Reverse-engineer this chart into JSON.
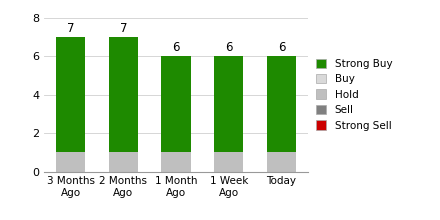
{
  "categories": [
    "3 Months\nAgo",
    "2 Months\nAgo",
    "1 Month\nAgo",
    "1 Week\nAgo",
    "Today"
  ],
  "strong_buy": [
    6,
    6,
    5,
    5,
    5
  ],
  "buy": [
    0,
    0,
    0,
    0,
    0
  ],
  "hold": [
    1,
    1,
    1,
    1,
    1
  ],
  "sell": [
    0,
    0,
    0,
    0,
    0
  ],
  "strong_sell": [
    0,
    0,
    0,
    0,
    0
  ],
  "totals": [
    7,
    7,
    6,
    6,
    6
  ],
  "colors": {
    "strong_buy": "#1e8a00",
    "buy": "#d9d9d9",
    "hold": "#bfbfbf",
    "sell": "#808080",
    "strong_sell": "#cc0000"
  },
  "ylim": [
    0,
    8
  ],
  "yticks": [
    0,
    2,
    4,
    6,
    8
  ],
  "legend_labels": [
    "Strong Buy",
    "Buy",
    "Hold",
    "Sell",
    "Strong Sell"
  ],
  "background_color": "#ffffff",
  "bar_width": 0.55
}
